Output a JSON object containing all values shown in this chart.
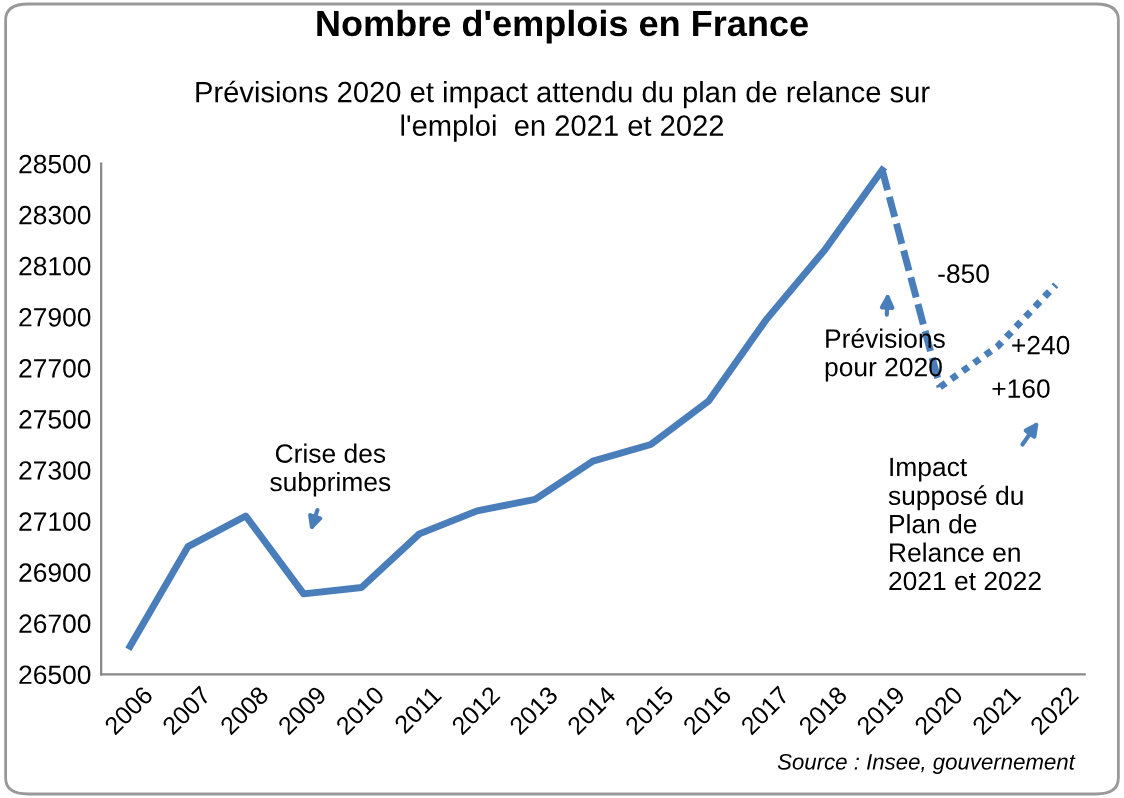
{
  "chart_data": {
    "type": "line",
    "title": "Nombre d'emplois en France",
    "subtitle": "Prévisions 2020 et impact attendu du plan de relance sur\nl'emploi  en 2021 et 2022",
    "categories": [
      "2006",
      "2007",
      "2008",
      "2009",
      "2010",
      "2011",
      "2012",
      "2013",
      "2014",
      "2015",
      "2016",
      "2017",
      "2018",
      "2019",
      "2020",
      "2021",
      "2022"
    ],
    "series": [
      {
        "color": "#4a7ebb",
        "line_style": "solid",
        "values": [
          26610,
          27000,
          27120,
          26815,
          26840,
          27050,
          27140,
          27185,
          27335,
          27400,
          27570,
          27890,
          28160,
          28475,
          null,
          null,
          null
        ]
      },
      {
        "color": "#4a7ebb",
        "line_style": "dashed",
        "values": [
          null,
          null,
          null,
          null,
          null,
          null,
          null,
          null,
          null,
          null,
          null,
          null,
          null,
          28475,
          27625,
          null,
          null
        ]
      },
      {
        "color": "#4a7ebb",
        "line_style": "dotted",
        "values": [
          null,
          null,
          null,
          null,
          null,
          null,
          null,
          null,
          null,
          null,
          null,
          null,
          null,
          null,
          27625,
          27785,
          28025
        ]
      }
    ],
    "ylim": [
      26500,
      28500
    ],
    "yticks": [
      26500,
      26700,
      26900,
      27100,
      27300,
      27500,
      27700,
      27900,
      28100,
      28300,
      28500
    ],
    "grid": false,
    "legend": false,
    "marker": "none",
    "annotations": [
      "Crise des\nsubprimes",
      "Prévisions\npour 2020",
      "-850",
      "+240",
      "+160",
      "Impact\nsupposé du\nPlan de\nRelance en\n2021 et 2022",
      "Source : Insee, gouvernement"
    ]
  }
}
